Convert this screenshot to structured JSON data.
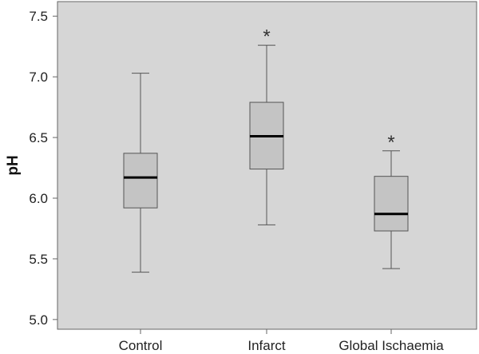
{
  "chart_data": {
    "type": "box",
    "ylabel": "pH",
    "ylim": [
      4.92,
      7.62
    ],
    "yticks": [
      "5.0",
      "5.5",
      "6.0",
      "6.5",
      "7.0",
      "7.5"
    ],
    "grid": false,
    "categories": [
      "Control",
      "Infarct",
      "Global Ischaemia"
    ],
    "boxes": [
      {
        "category": "Control",
        "min": 5.39,
        "q1": 5.92,
        "median": 6.17,
        "q3": 6.37,
        "max": 7.03,
        "marker": ""
      },
      {
        "category": "Infarct",
        "min": 5.78,
        "q1": 6.24,
        "median": 6.51,
        "q3": 6.79,
        "max": 7.26,
        "marker": "*"
      },
      {
        "category": "Global Ischaemia",
        "min": 5.42,
        "q1": 5.73,
        "median": 5.87,
        "q3": 6.18,
        "max": 6.39,
        "marker": "*"
      }
    ],
    "colors": {
      "plot_background": "#d6d6d6",
      "box_fill": "#c4c4c4",
      "box_stroke": "#555555",
      "median": "#000000",
      "whisker": "#555555",
      "frame": "#666666"
    }
  }
}
